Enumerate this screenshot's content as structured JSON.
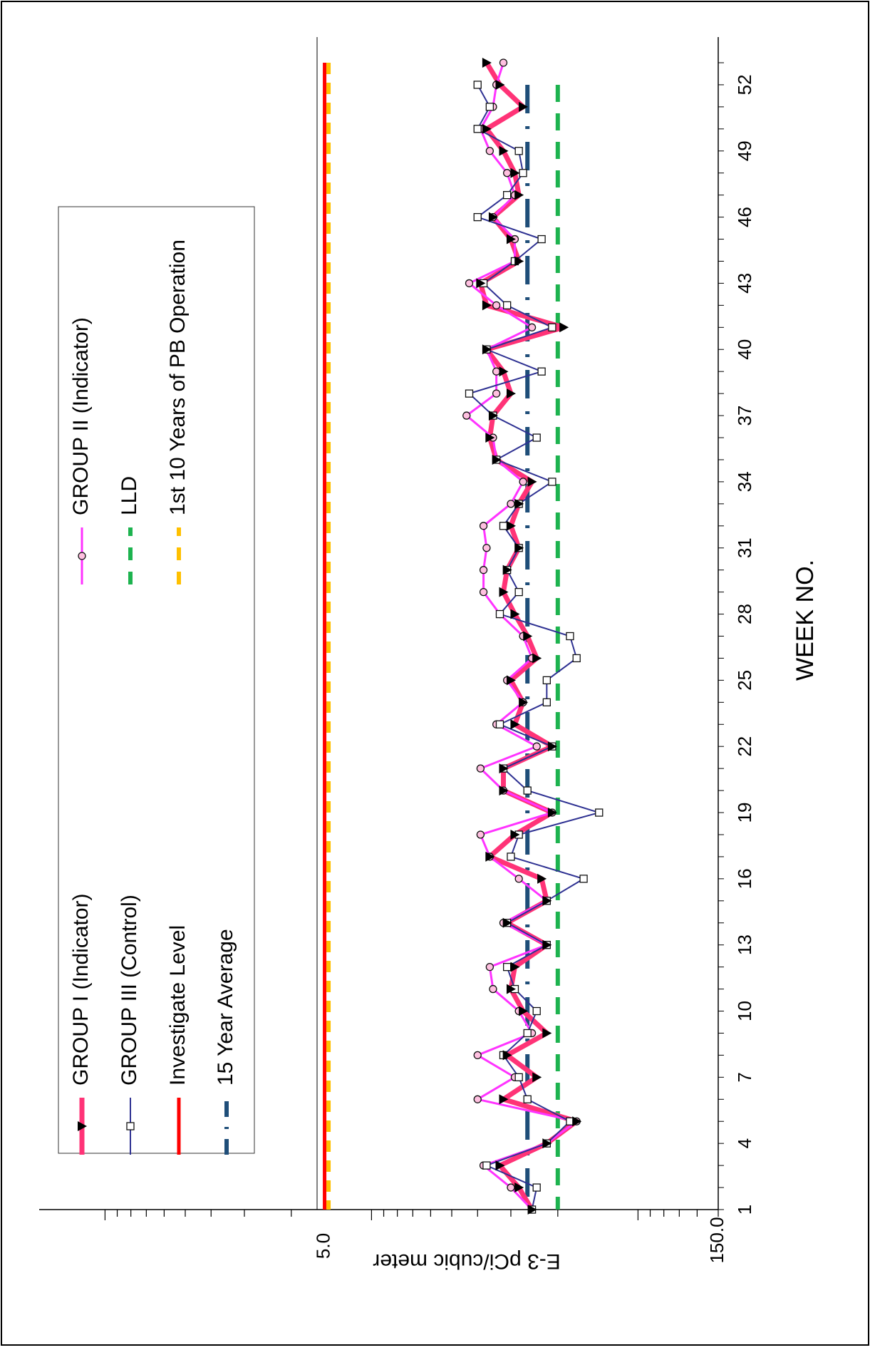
{
  "chart_data": {
    "type": "line",
    "orientation": "rotated-90-clockwise",
    "title": "",
    "xlabel": "WEEK NO.",
    "ylabel": "E-3 pCi/cubic meter",
    "y_scale": "log",
    "ylim": [
      5.0,
      1000
    ],
    "y_tick_labels": [
      "5.0",
      "150.0"
    ],
    "x_ticks": [
      1,
      4,
      7,
      10,
      13,
      16,
      19,
      22,
      25,
      28,
      31,
      34,
      37,
      40,
      43,
      46,
      49,
      52
    ],
    "x_range": [
      1,
      53
    ],
    "grid": false,
    "legend_position": "left",
    "legend": {
      "group1": "GROUP I (Indicator)",
      "group3": "GROUP III (Control)",
      "investigate": "Investigate Level",
      "avg15": "15 Year Average",
      "group2": "GROUP II (Indicator)",
      "lld": "LLD",
      "first10": "1st 10 Years of PB Operation"
    },
    "colors": {
      "group1": "#ff3377",
      "group2": "#ff33ff",
      "group3": "#2e3192",
      "investigate": "#ff0000",
      "avg15": "#1f4e79",
      "lld": "#1db34f",
      "first10": "#ffc000"
    },
    "reference_lines": {
      "investigate_level": 150,
      "first_10_years": 145,
      "avg_15_year": 26,
      "lld": 20
    },
    "series": [
      {
        "name": "GROUP I (Indicator)",
        "x": [
          1,
          2,
          3,
          4,
          5,
          6,
          7,
          8,
          9,
          10,
          11,
          12,
          13,
          14,
          15,
          16,
          17,
          18,
          19,
          20,
          21,
          22,
          23,
          24,
          25,
          26,
          27,
          28,
          29,
          30,
          31,
          32,
          33,
          34,
          35,
          36,
          37,
          38,
          39,
          40,
          41,
          42,
          43,
          44,
          45,
          46,
          47,
          48,
          49,
          50,
          51,
          52,
          53
        ],
        "values": [
          25,
          28,
          33,
          22,
          17,
          32,
          24,
          31,
          22,
          27,
          30,
          29,
          22,
          31,
          22,
          23,
          36,
          29,
          21,
          32,
          32,
          21,
          29,
          27,
          30,
          24,
          26,
          29,
          32,
          31,
          28,
          30,
          28,
          25,
          34,
          36,
          35,
          30,
          32,
          37,
          19,
          37,
          39,
          28,
          30,
          35,
          28,
          29,
          32,
          37,
          27,
          33,
          37
        ]
      },
      {
        "name": "GROUP II (Indicator)",
        "x": [
          1,
          2,
          3,
          4,
          5,
          6,
          7,
          8,
          9,
          10,
          11,
          12,
          13,
          14,
          15,
          16,
          17,
          18,
          19,
          20,
          21,
          22,
          23,
          24,
          25,
          26,
          27,
          28,
          29,
          30,
          31,
          32,
          33,
          34,
          35,
          36,
          37,
          38,
          39,
          40,
          41,
          42,
          43,
          44,
          45,
          46,
          47,
          48,
          49,
          50,
          51,
          52,
          53
        ],
        "values": [
          25,
          30,
          38,
          22,
          17,
          40,
          29,
          40,
          25,
          28,
          35,
          36,
          22,
          32,
          22,
          28,
          36,
          39,
          21,
          32,
          39,
          24,
          34,
          27,
          31,
          25,
          27,
          33,
          38,
          38,
          37,
          38,
          30,
          27,
          34,
          35,
          44,
          34,
          34,
          37,
          25,
          34,
          43,
          29,
          29,
          35,
          29,
          31,
          36,
          39,
          35,
          34,
          32
        ]
      },
      {
        "name": "GROUP III (Control)",
        "x": [
          1,
          2,
          3,
          4,
          5,
          6,
          7,
          8,
          9,
          10,
          11,
          12,
          13,
          14,
          15,
          16,
          17,
          18,
          19,
          20,
          21,
          22,
          23,
          24,
          25,
          26,
          27,
          28,
          29,
          30,
          31,
          32,
          33,
          34,
          35,
          36,
          37,
          38,
          39,
          40,
          41,
          42,
          43,
          44,
          45,
          46,
          47,
          48,
          49,
          50,
          51,
          52,
          53
        ],
        "values": [
          25,
          24,
          37,
          22,
          18,
          26,
          28,
          32,
          26,
          24,
          29,
          31,
          22,
          31,
          22,
          16,
          30,
          28,
          14,
          26,
          32,
          21,
          33,
          22,
          22,
          17,
          18,
          33,
          28,
          31,
          28,
          32,
          28,
          21,
          34,
          24,
          35,
          43,
          23,
          37,
          21,
          31,
          38,
          29,
          23,
          40,
          31,
          27,
          28,
          40,
          36,
          40,
          null
        ]
      }
    ]
  }
}
